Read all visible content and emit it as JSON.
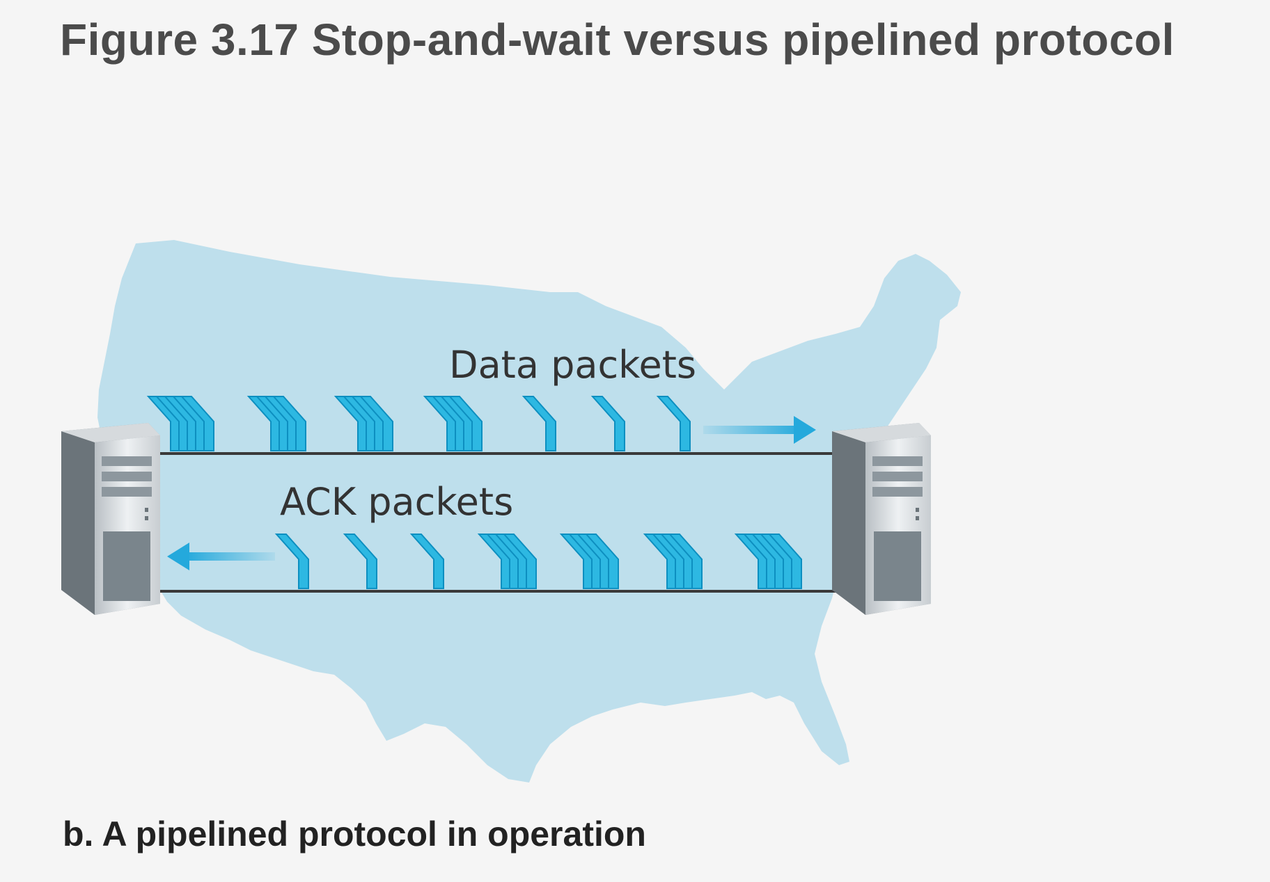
{
  "figure": {
    "title": "Figure 3.17 Stop-and-wait versus pipelined protocol",
    "caption": "b. A pipelined protocol in operation"
  },
  "diagram": {
    "data_label": "Data packets",
    "ack_label": "ACK packets",
    "data_packet_groups": [
      5,
      4,
      4,
      4,
      1,
      1,
      1
    ],
    "ack_packet_groups": [
      1,
      1,
      1,
      4,
      4,
      4,
      5
    ],
    "colors": {
      "map": "#bedfec",
      "packet_front": "#2db8e2",
      "packet_side": "#0d8fc0",
      "arrow": "#24a9dc",
      "link": "#3a3a3a"
    },
    "icons": [
      "us-map-icon",
      "server-icon",
      "packet-icon",
      "arrow-icon"
    ]
  }
}
